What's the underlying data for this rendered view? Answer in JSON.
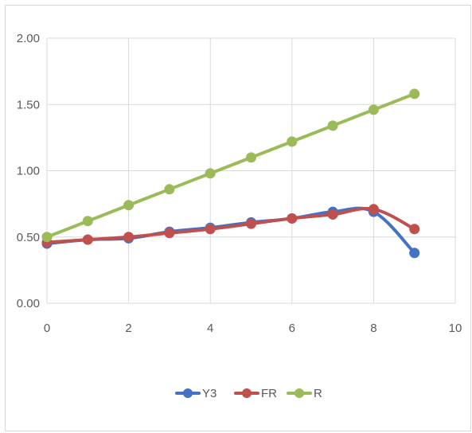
{
  "chart_data": {
    "type": "line",
    "title": "",
    "xlabel": "",
    "ylabel": "",
    "xlim": [
      0,
      10
    ],
    "ylim": [
      0,
      2
    ],
    "x_ticks": [
      "0",
      "2",
      "4",
      "6",
      "8",
      "10"
    ],
    "y_ticks": [
      "0.00",
      "0.50",
      "1.00",
      "1.50",
      "2.00"
    ],
    "grid": "vertical and horizontal",
    "legend_position": "bottom",
    "x": [
      0,
      1,
      2,
      3,
      4,
      5,
      6,
      7,
      8,
      9
    ],
    "series": [
      {
        "name": "Y3",
        "color": "#4472C4",
        "values": [
          0.45,
          0.48,
          0.49,
          0.54,
          0.57,
          0.61,
          0.64,
          0.69,
          0.69,
          0.38
        ]
      },
      {
        "name": "FR",
        "color": "#C0504D",
        "values": [
          0.46,
          0.48,
          0.5,
          0.53,
          0.56,
          0.6,
          0.64,
          0.67,
          0.71,
          0.56
        ]
      },
      {
        "name": "R",
        "color": "#9BBB59",
        "values": [
          0.5,
          0.62,
          0.74,
          0.86,
          0.98,
          1.1,
          1.22,
          1.34,
          1.46,
          1.58
        ]
      }
    ]
  }
}
